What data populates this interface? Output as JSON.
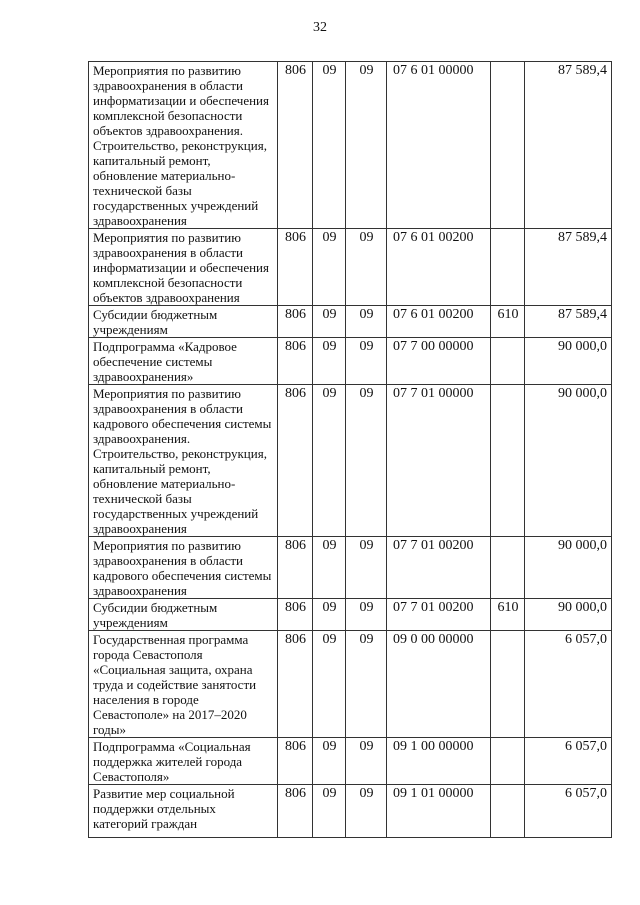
{
  "page_number": "32",
  "rows": [
    {
      "name": "Мероприятия по развитию здравоохранения в области информатизации и обеспечения комплексной безопасности объектов здравоохранения. Строительство, реконструкция, капитальный ремонт, обновление материально-технической базы государственных учреждений здравоохранения",
      "ved": "806",
      "rz": "09",
      "pr": "09",
      "csr": "07 6 01 00000",
      "vr": "",
      "sum": "87 589,4"
    },
    {
      "name": "Мероприятия по развитию здравоохранения в области информатизации и обеспечения комплексной безопасности объектов здравоохранения",
      "ved": "806",
      "rz": "09",
      "pr": "09",
      "csr": "07 6 01 00200",
      "vr": "",
      "sum": "87 589,4"
    },
    {
      "name": "Субсидии бюджетным учреждениям",
      "ved": "806",
      "rz": "09",
      "pr": "09",
      "csr": "07 6 01 00200",
      "vr": "610",
      "sum": "87 589,4"
    },
    {
      "name": "Подпрограмма «Кадровое обеспечение системы здравоохранения»",
      "ved": "806",
      "rz": "09",
      "pr": "09",
      "csr": "07 7 00 00000",
      "vr": "",
      "sum": "90 000,0"
    },
    {
      "name": "Мероприятия по развитию здравоохранения в области кадрового обеспечения системы здравоохранения. Строительство, реконструкция, капитальный ремонт, обновление материально-технической базы государственных учреждений здравоохранения",
      "ved": "806",
      "rz": "09",
      "pr": "09",
      "csr": "07 7 01 00000",
      "vr": "",
      "sum": "90 000,0"
    },
    {
      "name": "Мероприятия по развитию здравоохранения в области кадрового обеспечения системы здравоохранения",
      "ved": "806",
      "rz": "09",
      "pr": "09",
      "csr": "07 7 01 00200",
      "vr": "",
      "sum": "90 000,0"
    },
    {
      "name": "Субсидии бюджетным учреждениям",
      "ved": "806",
      "rz": "09",
      "pr": "09",
      "csr": "07 7 01 00200",
      "vr": "610",
      "sum": "90 000,0"
    },
    {
      "name": "Государственная программа города Севастополя «Социальная защита, охрана труда и содействие занятости населения в городе Севастополе» на 2017–2020 годы»",
      "ved": "806",
      "rz": "09",
      "pr": "09",
      "csr": "09 0 00 00000",
      "vr": "",
      "sum": "6 057,0"
    },
    {
      "name": "Подпрограмма «Социальная поддержка жителей города Севастополя»",
      "ved": "806",
      "rz": "09",
      "pr": "09",
      "csr": "09 1 00 00000",
      "vr": "",
      "sum": "6 057,0"
    },
    {
      "name": "Развитие мер социальной поддержки отдельных категорий граждан",
      "ved": "806",
      "rz": "09",
      "pr": "09",
      "csr": "09 1 01 00000",
      "vr": "",
      "sum": "6 057,0"
    }
  ]
}
